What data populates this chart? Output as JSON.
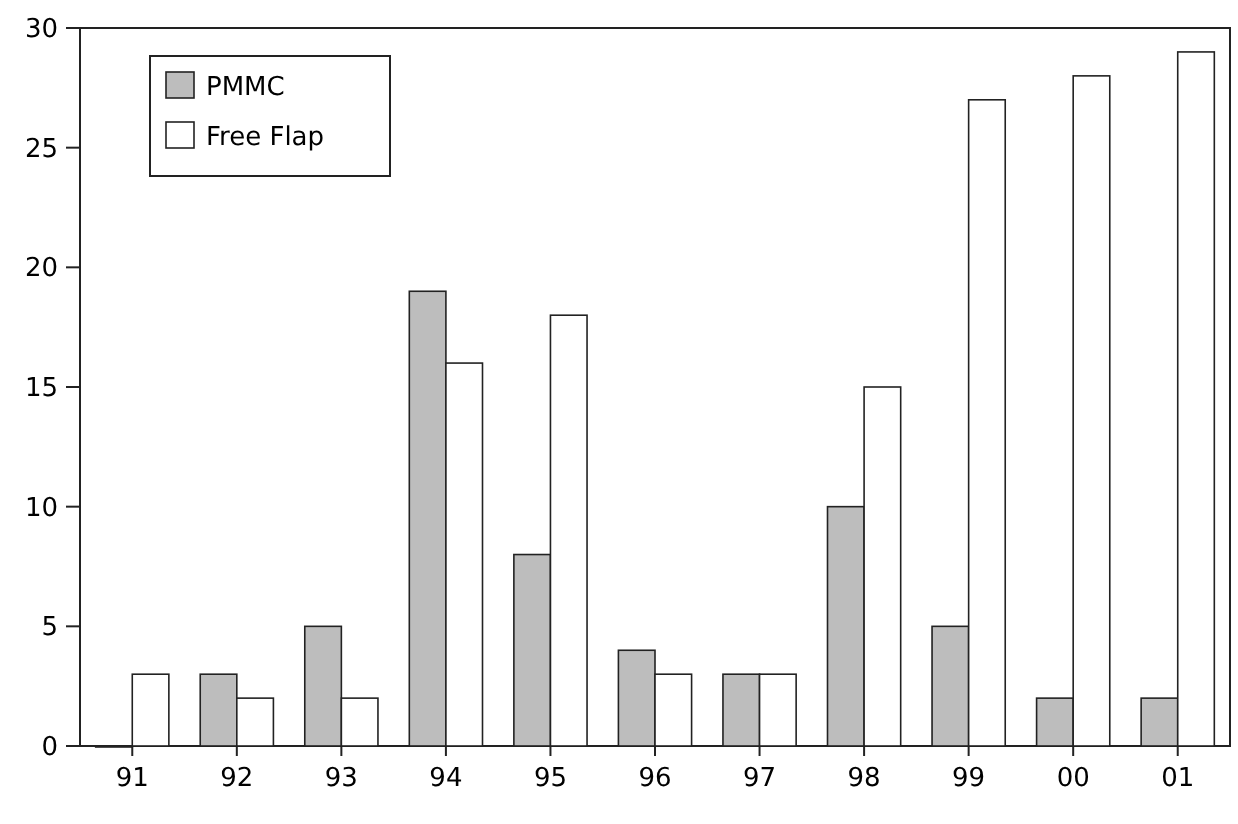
{
  "chart_data": {
    "type": "bar",
    "categories": [
      "91",
      "92",
      "93",
      "94",
      "95",
      "96",
      "97",
      "98",
      "99",
      "00",
      "01"
    ],
    "series": [
      {
        "name": "PMMC",
        "color": "#bdbdbd",
        "values": [
          0,
          3,
          5,
          19,
          8,
          4,
          3,
          10,
          5,
          2,
          2
        ]
      },
      {
        "name": "Free Flap",
        "color": "#ffffff",
        "values": [
          3,
          2,
          2,
          16,
          18,
          3,
          3,
          15,
          27,
          28,
          29
        ]
      }
    ],
    "ylim": [
      0,
      30
    ],
    "yticks": [
      0,
      5,
      10,
      15,
      20,
      25,
      30
    ],
    "grid": false,
    "legend": "top left"
  }
}
